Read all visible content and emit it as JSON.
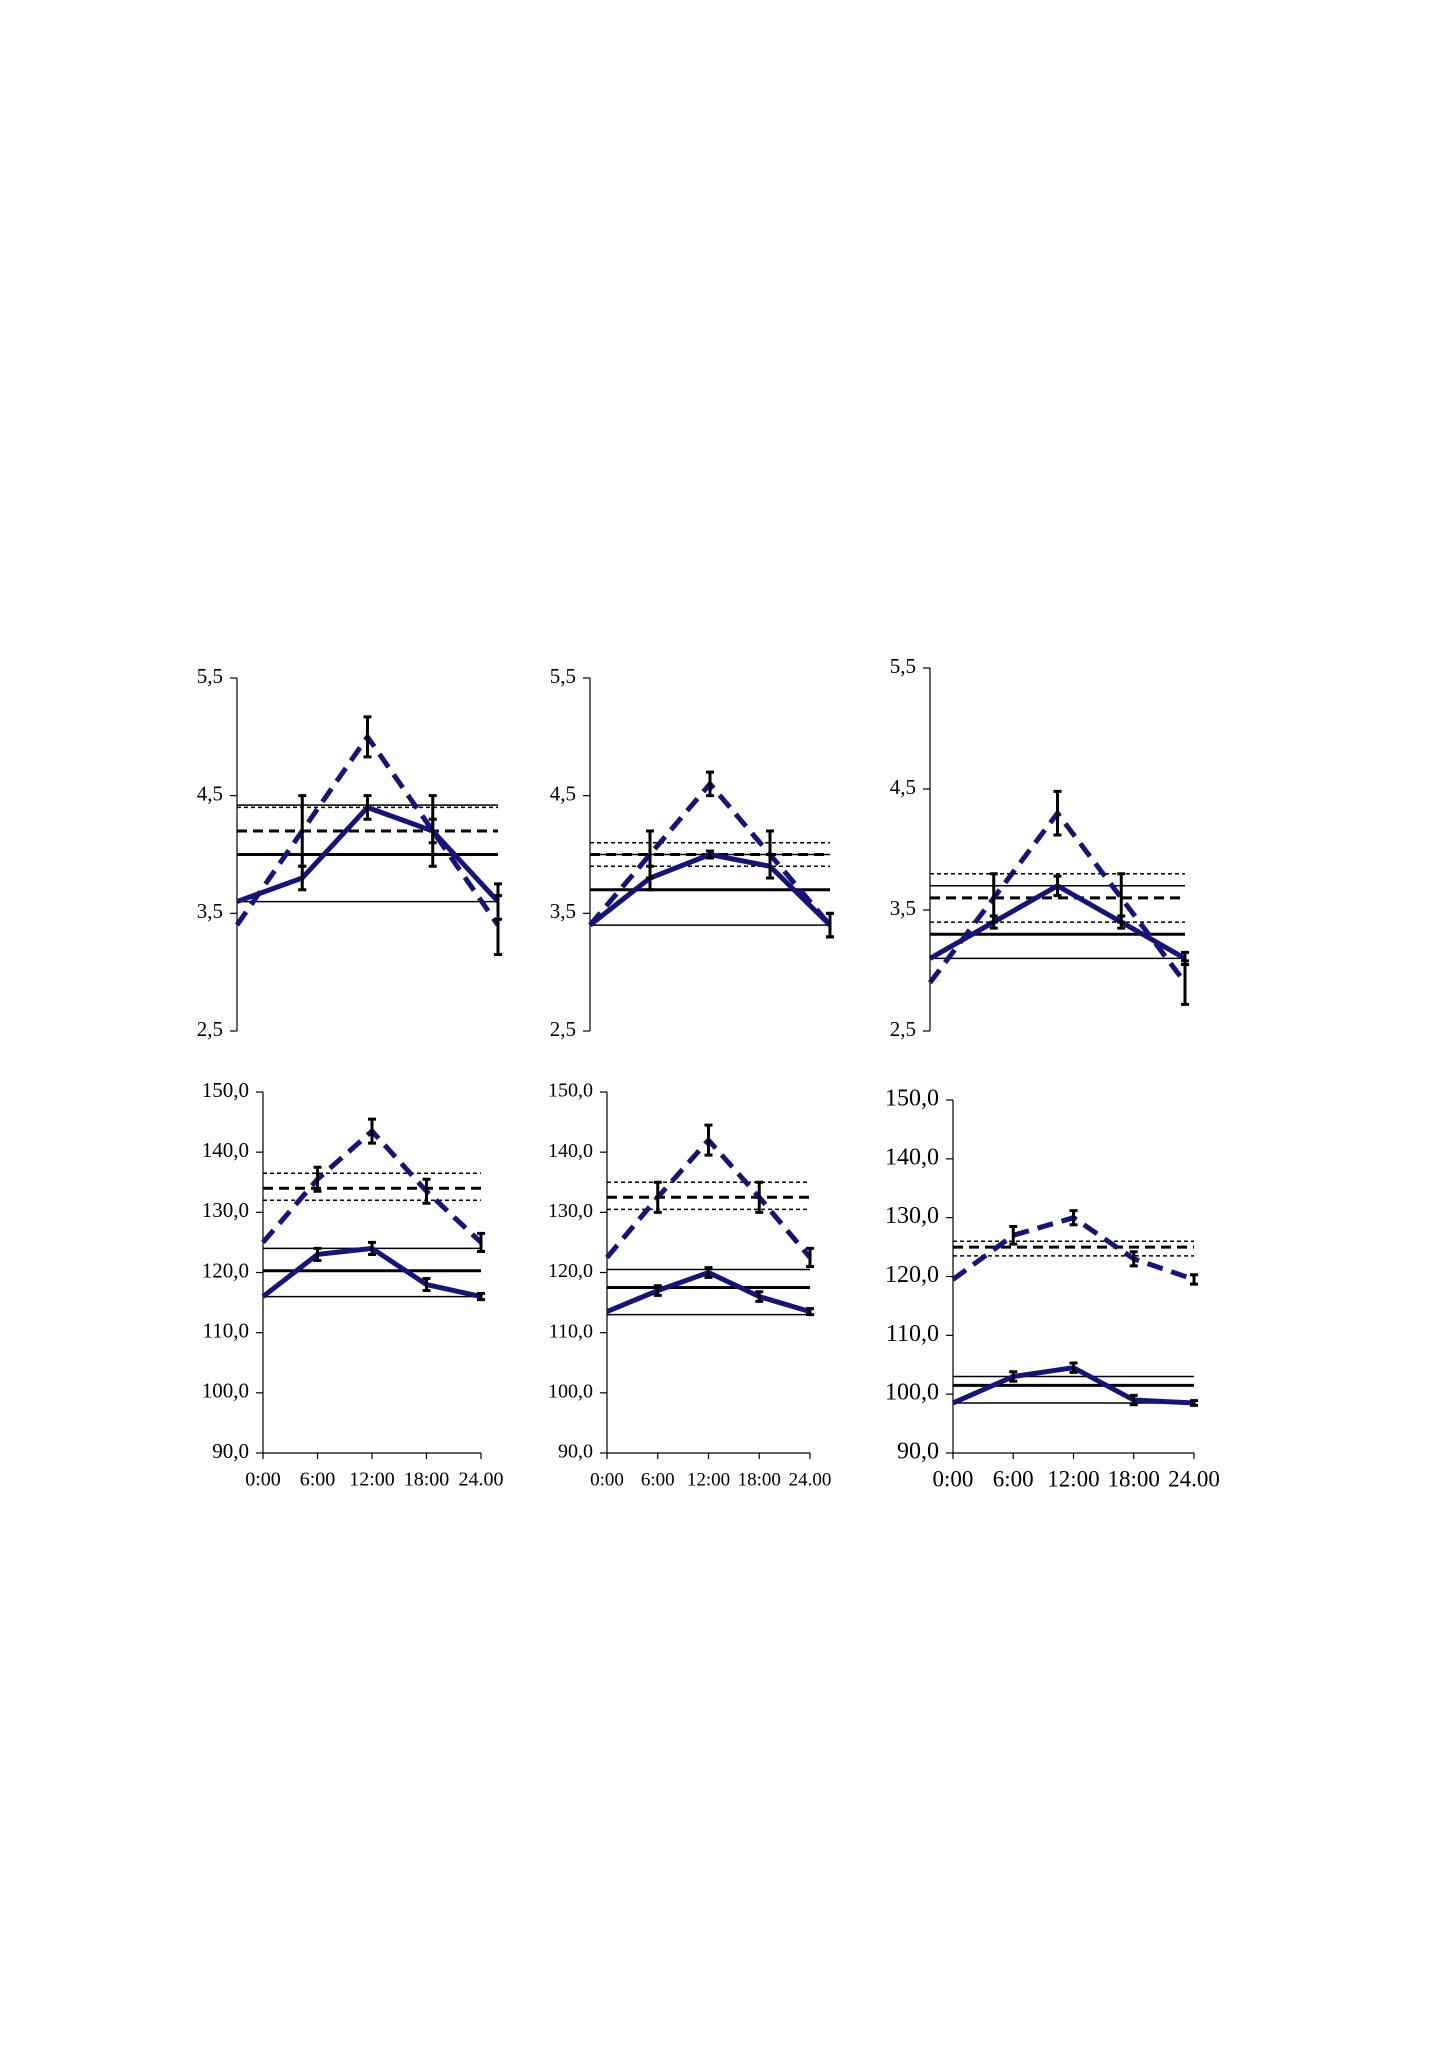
{
  "chart_data": [
    {
      "type": "line",
      "categories": [
        null,
        null,
        null,
        null,
        null
      ],
      "ylim": [
        2.5,
        5.5
      ],
      "yticks": [
        {
          "value": 2.5,
          "label": "2,5"
        },
        {
          "value": 3.5,
          "label": "3,5"
        },
        {
          "value": 4.5,
          "label": "4,5"
        },
        {
          "value": 5.5,
          "label": "5,5"
        }
      ],
      "series": [
        {
          "color": "#14147a",
          "line_style": "dashed",
          "values": [
            3.4,
            4.2,
            5.0,
            4.2,
            3.4
          ],
          "errors": [
            null,
            0.3,
            0.17,
            0.3,
            0.25
          ]
        },
        {
          "color": "#14147a",
          "line_style": "solid",
          "values": [
            3.6,
            3.8,
            4.4,
            4.2,
            3.6
          ],
          "errors": [
            null,
            0.1,
            0.1,
            0.1,
            0.15
          ]
        }
      ],
      "reference_lines": [
        {
          "value": 4.0,
          "style": "thick-solid"
        },
        {
          "value": 3.6,
          "style": "thin-solid"
        },
        {
          "value": 4.42,
          "style": "thin-solid"
        },
        {
          "value": 4.2,
          "style": "thick-dashed"
        },
        {
          "value": 4.0,
          "style": "thin-dotted"
        },
        {
          "value": 4.4,
          "style": "thin-dotted"
        }
      ]
    },
    {
      "type": "line",
      "categories": [
        null,
        null,
        null,
        null,
        null
      ],
      "ylim": [
        2.5,
        5.5
      ],
      "yticks": [
        {
          "value": 2.5,
          "label": "2,5"
        },
        {
          "value": 3.5,
          "label": "3,5"
        },
        {
          "value": 4.5,
          "label": "4,5"
        },
        {
          "value": 5.5,
          "label": "5,5"
        }
      ],
      "series": [
        {
          "color": "#14147a",
          "line_style": "dashed",
          "values": [
            3.4,
            4.0,
            4.6,
            4.0,
            3.4
          ],
          "errors": [
            null,
            0.2,
            0.1,
            0.2,
            0.1
          ]
        },
        {
          "color": "#14147a",
          "line_style": "solid",
          "values": [
            3.4,
            3.8,
            4.0,
            3.9,
            3.4
          ],
          "errors": [
            null,
            0.1,
            0.03,
            0.1,
            0.1
          ]
        }
      ],
      "reference_lines": [
        {
          "value": 3.7,
          "style": "thick-solid"
        },
        {
          "value": 3.4,
          "style": "thin-solid"
        },
        {
          "value": 4.0,
          "style": "thin-solid"
        },
        {
          "value": 4.0,
          "style": "thick-dashed"
        },
        {
          "value": 3.9,
          "style": "thin-dotted"
        },
        {
          "value": 4.1,
          "style": "thin-dotted"
        }
      ]
    },
    {
      "type": "line",
      "categories": [
        null,
        null,
        null,
        null,
        null
      ],
      "ylim": [
        2.5,
        5.5
      ],
      "yticks": [
        {
          "value": 2.5,
          "label": "2,5"
        },
        {
          "value": 3.5,
          "label": "3,5"
        },
        {
          "value": 4.5,
          "label": "4,5"
        },
        {
          "value": 5.5,
          "label": "5,5"
        }
      ],
      "series": [
        {
          "color": "#14147a",
          "line_style": "dashed",
          "values": [
            2.9,
            3.6,
            4.3,
            3.6,
            2.9
          ],
          "errors": [
            null,
            0.2,
            0.18,
            0.2,
            0.18
          ]
        },
        {
          "color": "#14147a",
          "line_style": "solid",
          "values": [
            3.1,
            3.4,
            3.7,
            3.4,
            3.1
          ],
          "errors": [
            null,
            0.05,
            0.08,
            0.05,
            0.05
          ]
        }
      ],
      "reference_lines": [
        {
          "value": 3.3,
          "style": "thick-solid"
        },
        {
          "value": 3.1,
          "style": "thin-solid"
        },
        {
          "value": 3.7,
          "style": "thin-solid"
        },
        {
          "value": 3.6,
          "style": "thick-dashed"
        },
        {
          "value": 3.4,
          "style": "thin-dotted"
        },
        {
          "value": 3.8,
          "style": "thin-dotted"
        }
      ]
    },
    {
      "type": "line",
      "categories": [
        "0:00",
        "6:00",
        "12:00",
        "18:00",
        "24.00"
      ],
      "ylim": [
        90,
        150
      ],
      "yticks": [
        {
          "value": 90,
          "label": "90,0"
        },
        {
          "value": 100,
          "label": "100,0"
        },
        {
          "value": 110,
          "label": "110,0"
        },
        {
          "value": 120,
          "label": "120,0"
        },
        {
          "value": 130,
          "label": "130,0"
        },
        {
          "value": 140,
          "label": "140,0"
        },
        {
          "value": 150,
          "label": "150,0"
        }
      ],
      "series": [
        {
          "color": "#14147a",
          "line_style": "dashed",
          "values": [
            125,
            135.5,
            143.5,
            133.5,
            125
          ],
          "errors": [
            null,
            2,
            2,
            2,
            1.5
          ]
        },
        {
          "color": "#14147a",
          "line_style": "solid",
          "values": [
            116,
            123,
            124,
            118,
            116
          ],
          "errors": [
            null,
            1,
            1,
            1,
            0.5
          ]
        }
      ],
      "reference_lines": [
        {
          "value": 120.3,
          "style": "thick-solid"
        },
        {
          "value": 116,
          "style": "thin-solid"
        },
        {
          "value": 124,
          "style": "thin-solid"
        },
        {
          "value": 134,
          "style": "thick-dashed"
        },
        {
          "value": 132,
          "style": "thin-dotted"
        },
        {
          "value": 136.5,
          "style": "thin-dotted"
        }
      ]
    },
    {
      "type": "line",
      "categories": [
        "0:00",
        "6:00",
        "12:00",
        "18:00",
        "24.00"
      ],
      "ylim": [
        90,
        150
      ],
      "yticks": [
        {
          "value": 90,
          "label": "90,0"
        },
        {
          "value": 100,
          "label": "100,0"
        },
        {
          "value": 110,
          "label": "110,0"
        },
        {
          "value": 120,
          "label": "120,0"
        },
        {
          "value": 130,
          "label": "130,0"
        },
        {
          "value": 140,
          "label": "140,0"
        },
        {
          "value": 150,
          "label": "150,0"
        }
      ],
      "series": [
        {
          "color": "#14147a",
          "line_style": "dashed",
          "values": [
            122.5,
            132.5,
            142,
            132.5,
            122.5
          ],
          "errors": [
            null,
            2.5,
            2.5,
            2.5,
            1.5
          ]
        },
        {
          "color": "#14147a",
          "line_style": "solid",
          "values": [
            113.5,
            117,
            120,
            116,
            113.5
          ],
          "errors": [
            null,
            0.8,
            0.8,
            0.8,
            0.5
          ]
        }
      ],
      "reference_lines": [
        {
          "value": 117.5,
          "style": "thick-solid"
        },
        {
          "value": 113,
          "style": "thin-solid"
        },
        {
          "value": 120.5,
          "style": "thin-solid"
        },
        {
          "value": 132.5,
          "style": "thick-dashed"
        },
        {
          "value": 130.5,
          "style": "thin-dotted"
        },
        {
          "value": 135,
          "style": "thin-dotted"
        }
      ]
    },
    {
      "type": "line",
      "categories": [
        "0:00",
        "6:00",
        "12:00",
        "18:00",
        "24.00"
      ],
      "ylim": [
        90,
        150
      ],
      "yticks": [
        {
          "value": 90,
          "label": "90,0"
        },
        {
          "value": 100,
          "label": "100,0"
        },
        {
          "value": 110,
          "label": "110,0"
        },
        {
          "value": 120,
          "label": "120,0"
        },
        {
          "value": 130,
          "label": "130,0"
        },
        {
          "value": 140,
          "label": "140,0"
        },
        {
          "value": 150,
          "label": "150,0"
        }
      ],
      "series": [
        {
          "color": "#14147a",
          "line_style": "dashed",
          "values": [
            119.5,
            127,
            130,
            123,
            119.5
          ],
          "errors": [
            null,
            1.5,
            1.2,
            1.2,
            0.8
          ]
        },
        {
          "color": "#14147a",
          "line_style": "solid",
          "values": [
            98.5,
            103,
            104.5,
            99,
            98.5
          ],
          "errors": [
            null,
            0.8,
            0.8,
            0.8,
            0.4
          ]
        }
      ],
      "reference_lines": [
        {
          "value": 101.5,
          "style": "thick-solid"
        },
        {
          "value": 98.5,
          "style": "thin-solid"
        },
        {
          "value": 103,
          "style": "thin-solid"
        },
        {
          "value": 125,
          "style": "thick-dashed"
        },
        {
          "value": 123.5,
          "style": "thin-dotted"
        },
        {
          "value": 126,
          "style": "thin-dotted"
        }
      ]
    }
  ]
}
